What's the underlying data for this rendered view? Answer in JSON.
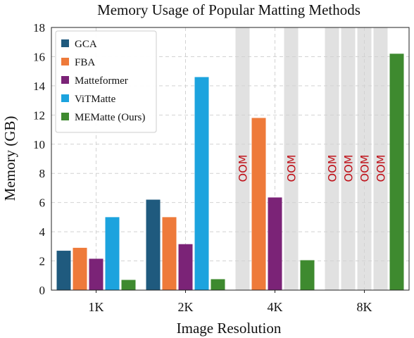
{
  "chart_data": {
    "type": "bar",
    "title": "Memory Usage of Popular Matting Methods",
    "xlabel": "Image Resolution",
    "ylabel": "Memory (GB)",
    "ylim": [
      0,
      18
    ],
    "yticks": [
      0,
      2,
      4,
      6,
      8,
      10,
      12,
      14,
      16,
      18
    ],
    "grid": true,
    "legend_position": "top-left",
    "categories": [
      "1K",
      "2K",
      "4K",
      "8K"
    ],
    "oom_label": "OOM",
    "series": [
      {
        "name": "GCA",
        "color": "#1f5a7e",
        "values": [
          2.7,
          6.2,
          null,
          null
        ]
      },
      {
        "name": "FBA",
        "color": "#ee7a3a",
        "values": [
          2.9,
          5.0,
          11.8,
          null
        ]
      },
      {
        "name": "Matteformer",
        "color": "#7b2377",
        "values": [
          2.15,
          3.15,
          6.35,
          null
        ]
      },
      {
        "name": "ViTMatte",
        "color": "#1ca3de",
        "values": [
          5.0,
          14.6,
          null,
          null
        ]
      },
      {
        "name": "MEMatte (Ours)",
        "color": "#3e8a2f",
        "values": [
          0.7,
          0.75,
          2.05,
          16.2
        ]
      }
    ]
  }
}
